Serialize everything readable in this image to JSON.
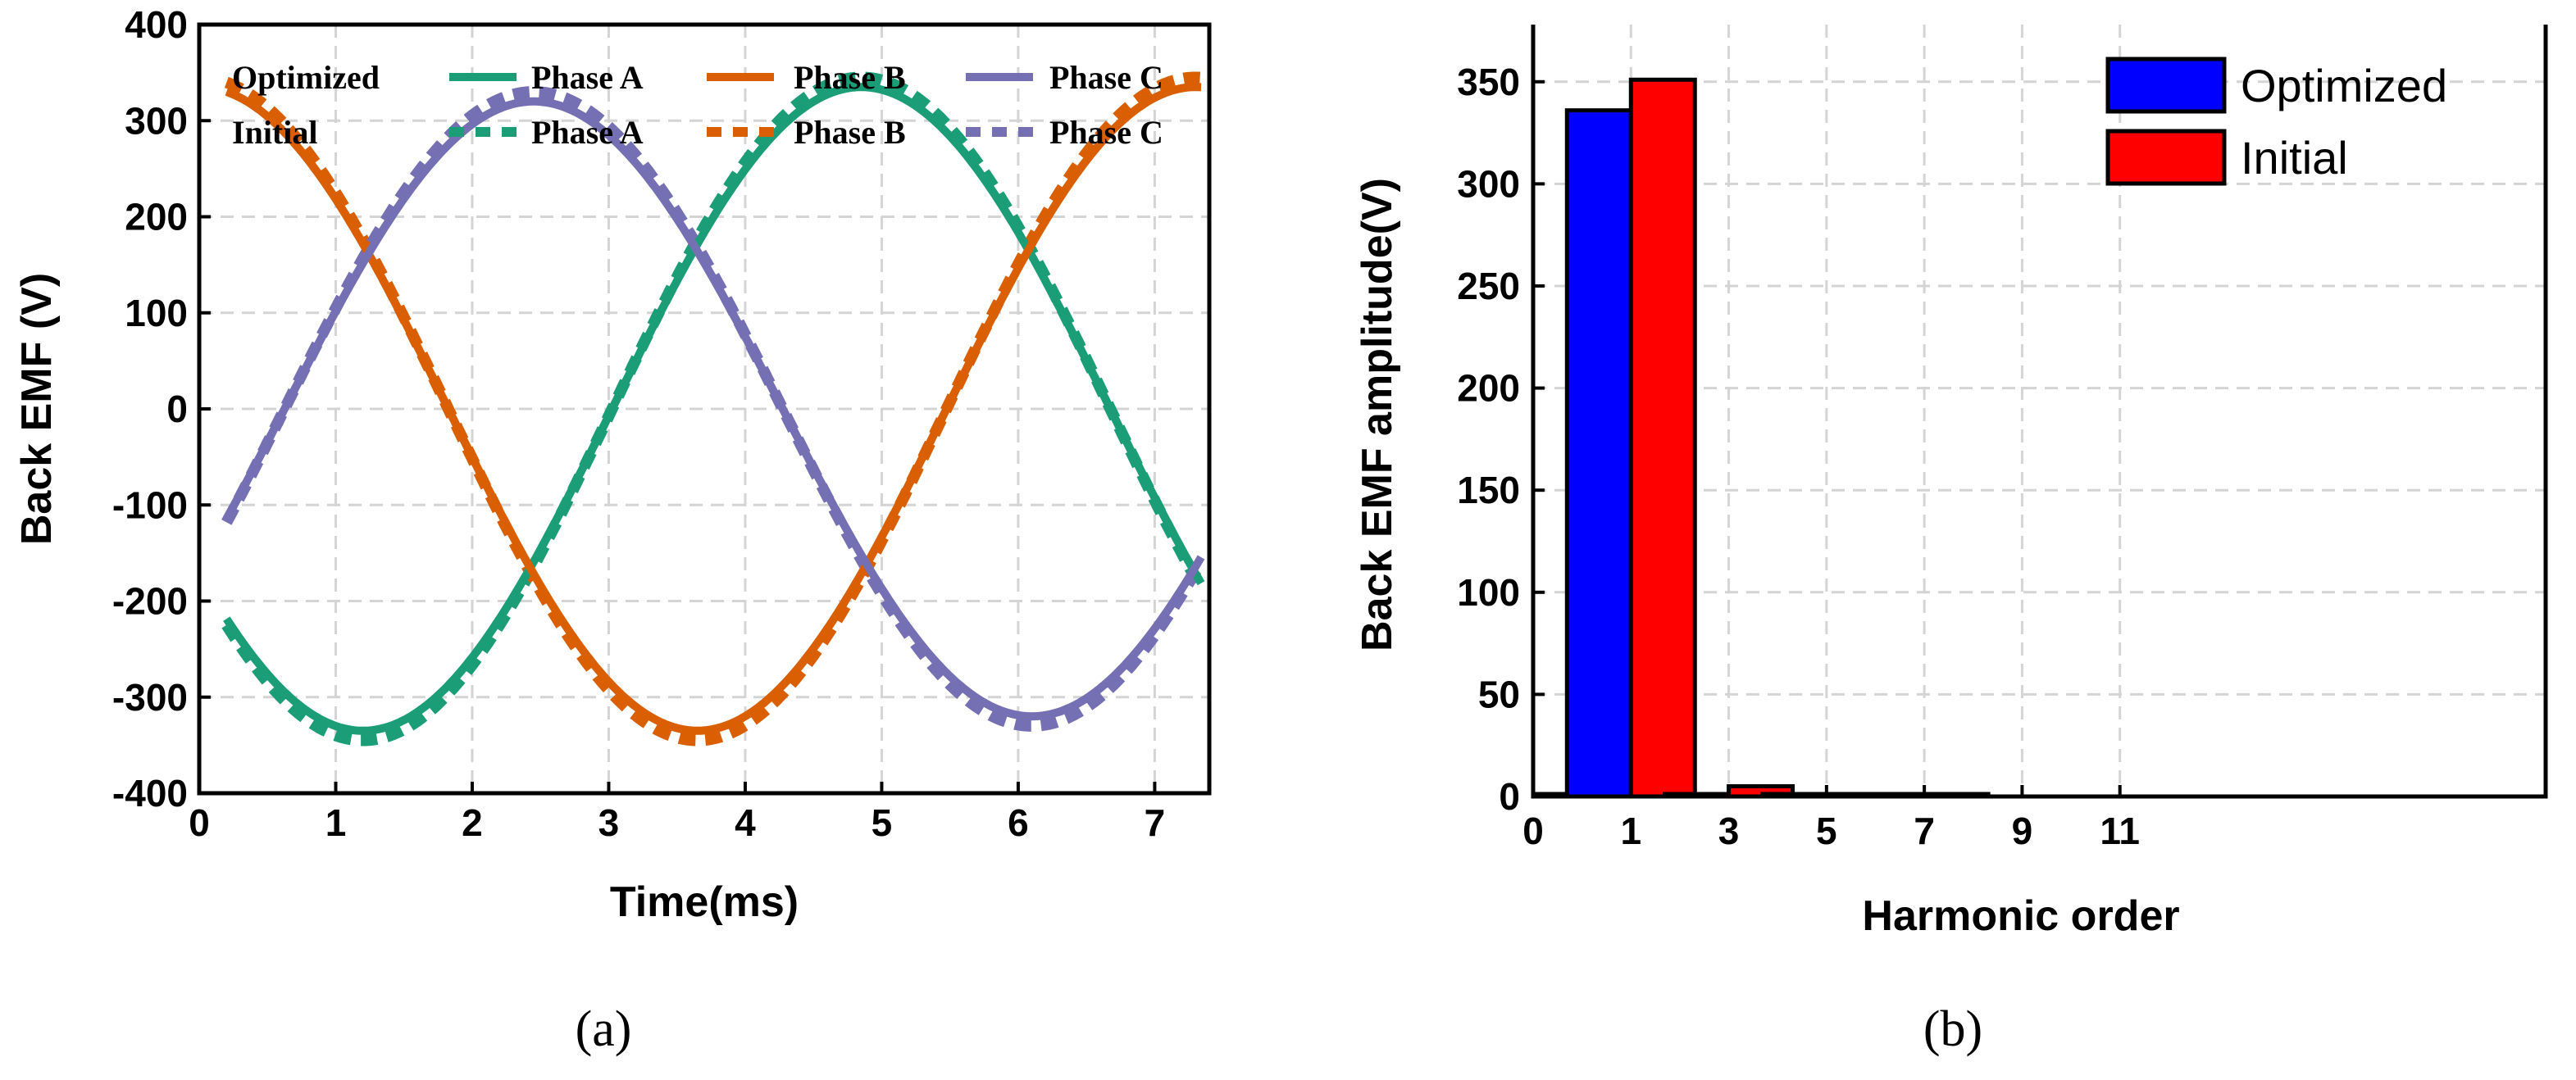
{
  "chart_data": [
    {
      "id": "a",
      "type": "line",
      "caption": "(a)",
      "xlabel": "Time(ms)",
      "ylabel": "Back EMF (V)",
      "xlim": [
        0,
        7.4
      ],
      "ylim": [
        -400,
        400
      ],
      "xticks": [
        0,
        1,
        2,
        3,
        4,
        5,
        6,
        7
      ],
      "yticks": [
        -400,
        -300,
        -200,
        -100,
        0,
        100,
        200,
        300,
        400
      ],
      "grid": true,
      "legend": {
        "placement": "top",
        "row_labels": [
          "Optimized",
          "Initial"
        ],
        "entries": [
          "Phase A",
          "Phase B",
          "Phase C",
          "Phase A",
          "Phase B",
          "Phase C"
        ]
      },
      "x_range": [
        0.2,
        7.35
      ],
      "period_ms": 7.3,
      "series": [
        {
          "name": "Phase A",
          "group": "Optimized",
          "style": "solid",
          "color": "#1b9e77",
          "amplitude": 335,
          "peak_ms": 4.85
        },
        {
          "name": "Phase B",
          "group": "Optimized",
          "style": "solid",
          "color": "#d95f02",
          "amplitude": 335,
          "peak_ms": 0.0
        },
        {
          "name": "Phase C",
          "group": "Optimized",
          "style": "solid",
          "color": "#7570b3",
          "amplitude": 320,
          "peak_ms": 2.45
        },
        {
          "name": "Phase A",
          "group": "Initial",
          "style": "dashed",
          "color": "#1b9e77",
          "amplitude": 345,
          "peak_ms": 4.85
        },
        {
          "name": "Phase B",
          "group": "Initial",
          "style": "dashed",
          "color": "#d95f02",
          "amplitude": 345,
          "peak_ms": 0.0
        },
        {
          "name": "Phase C",
          "group": "Initial",
          "style": "dashed",
          "color": "#7570b3",
          "amplitude": 330,
          "peak_ms": 2.45
        }
      ]
    },
    {
      "id": "b",
      "type": "bar",
      "caption": "(b)",
      "xlabel": "Harmonic order",
      "ylabel": "Back EMF amplitude(V)",
      "xlim": [
        0,
        12.3
      ],
      "ylim": [
        0,
        378
      ],
      "xticks": [
        0,
        1,
        3,
        5,
        7,
        9,
        11
      ],
      "xtick_positions": [
        0,
        2.4,
        4.8,
        7.2,
        9.6,
        12.0,
        14.4
      ],
      "yticks": [
        0,
        50,
        100,
        150,
        200,
        250,
        300,
        350
      ],
      "grid": true,
      "legend": {
        "placement": "top-right",
        "entries": [
          "Optimized",
          "Initial"
        ]
      },
      "categories": [
        "1",
        "3",
        "5",
        "7"
      ],
      "category_positions": [
        2.4,
        4.8,
        7.2,
        9.6
      ],
      "series": [
        {
          "name": "Optimized",
          "color": "#0000ff",
          "values": [
            336,
            1,
            0,
            0
          ]
        },
        {
          "name": "Initial",
          "color": "#ff0000",
          "values": [
            351,
            5,
            0,
            0
          ]
        }
      ]
    }
  ]
}
